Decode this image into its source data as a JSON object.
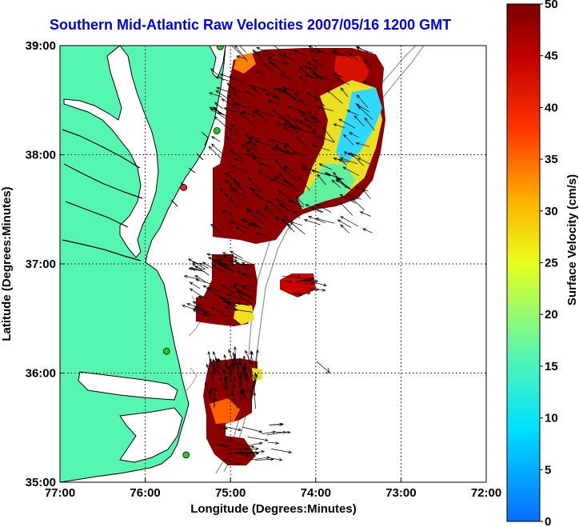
{
  "title": "Southern Mid-Atlantic Raw Velocities 2007/05/16 1200 GMT",
  "axes": {
    "xlabel": "Longitude (Degrees:Minutes)",
    "ylabel": "Latitude (Degrees:Minutes)",
    "xticks": [
      "77:00",
      "76:00",
      "75:00",
      "74:00",
      "73:00",
      "72:00"
    ],
    "yticks": [
      "39:00",
      "38:00",
      "37:00",
      "36:00",
      "35:00"
    ],
    "xlim": [
      -77,
      -72
    ],
    "ylim": [
      35,
      39
    ],
    "grid": true
  },
  "colorbar": {
    "label": "Surface Velocity (cm/s)",
    "ticks": [
      "50",
      "45",
      "40",
      "35",
      "30",
      "25",
      "20",
      "15",
      "10",
      "5",
      "0"
    ],
    "range": [
      0,
      50
    ],
    "colormap": "jet"
  },
  "colors": {
    "land": "#55f7b0",
    "water": "#ffffff",
    "title": "#0000ee",
    "coast": "#000000",
    "bathymetry": "#999999",
    "station_green": "#22cc22",
    "station_red": "#ee2222"
  },
  "stations": [
    {
      "name": "station-green-1",
      "color": "green",
      "lon": -75.12,
      "lat": 38.99
    },
    {
      "name": "station-green-2",
      "color": "green",
      "lon": -75.16,
      "lat": 38.22
    },
    {
      "name": "station-red-1",
      "color": "red",
      "lon": -75.55,
      "lat": 37.7
    },
    {
      "name": "station-green-3",
      "color": "green",
      "lon": -75.75,
      "lat": 36.2
    },
    {
      "name": "station-green-4",
      "color": "green",
      "lon": -75.52,
      "lat": 35.25
    }
  ]
}
